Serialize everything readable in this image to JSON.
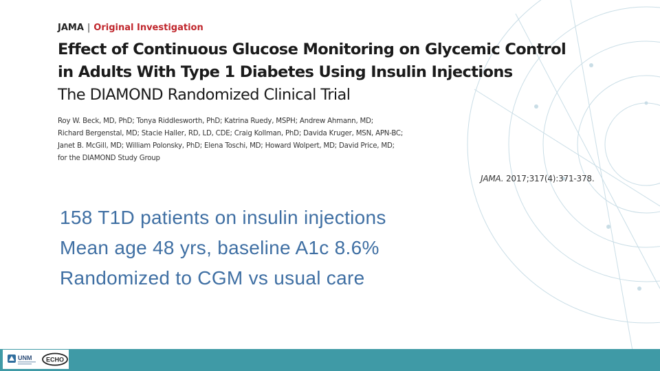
{
  "journal": {
    "name": "JAMA",
    "separator": "|",
    "type": "Original Investigation"
  },
  "article": {
    "title_line1": "Effect of Continuous Glucose Monitoring on Glycemic Control",
    "title_line2": "in Adults With Type 1 Diabetes Using Insulin Injections",
    "subtitle": "The DIAMOND Randomized Clinical Trial",
    "authors": [
      "Roy W. Beck, MD, PhD; Tonya Riddlesworth, PhD; Katrina Ruedy, MSPH; Andrew Ahmann, MD;",
      "Richard Bergenstal, MD; Stacie Haller, RD, LD, CDE; Craig Kollman, PhD; Davida Kruger, MSN, APN-BC;",
      "Janet B. McGill, MD; William Polonsky, PhD; Elena Toschi, MD; Howard Wolpert, MD; David Price, MD;",
      "for the DIAMOND Study Group"
    ],
    "citation_journal": "JAMA.",
    "citation_rest": "2017;317(4):371-378."
  },
  "bullets": [
    "158 T1D patients on insulin injections",
    "Mean age 48 yrs, baseline A1c 8.6%",
    "Randomized to CGM vs usual care"
  ],
  "footer": {
    "logos": [
      "UNM",
      "ECHO"
    ],
    "bar_color": "#3f9aa6"
  },
  "colors": {
    "journal_red": "#c0272d",
    "bullet_blue": "#3f6fa3"
  }
}
